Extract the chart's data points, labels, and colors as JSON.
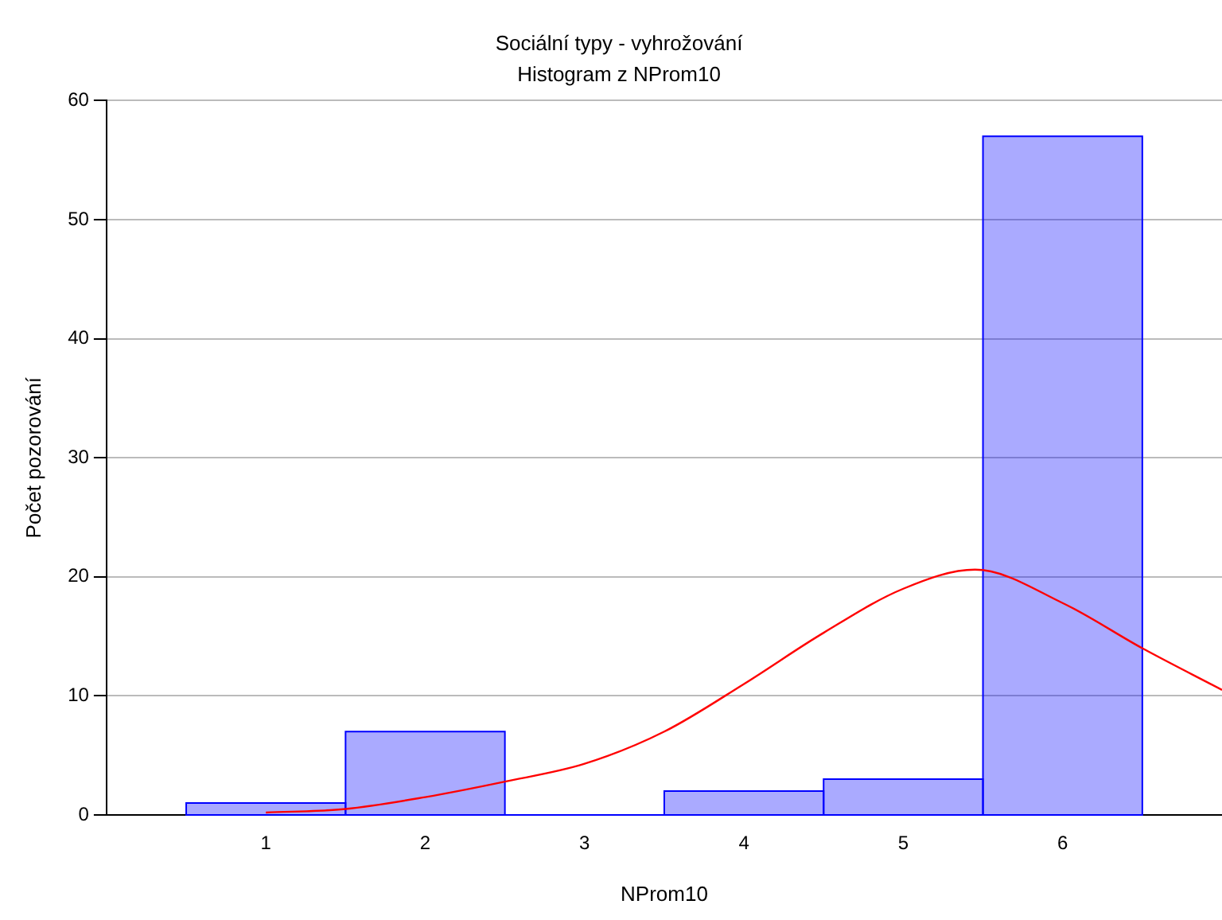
{
  "chart_data": {
    "type": "histogram",
    "title": "Sociální typy - vyhrožování",
    "subtitle": "Histogram z NProm10",
    "xlabel": "NProm10",
    "ylabel": "Počet pozorování",
    "bins": [
      0.5,
      1.5,
      2.5,
      3.5,
      4.5,
      5.5,
      6.5
    ],
    "values": [
      1,
      7,
      0,
      2,
      3,
      57
    ],
    "color": "#0000ff",
    "series": [
      {
        "type": "line",
        "color": "#ff0000",
        "x": [
          1,
          1.5,
          2,
          2.5,
          3,
          3.5,
          4,
          4.5,
          5,
          5.45,
          6,
          6.5,
          7
        ],
        "values": [
          0.2,
          0.5,
          1.5,
          2.8,
          4.3,
          7,
          11,
          15.3,
          19,
          20.6,
          17.8,
          14,
          10.5
        ]
      }
    ],
    "xlim": [
      0,
      7
    ],
    "xticks": [
      1,
      2,
      3,
      4,
      5,
      6
    ],
    "ylim": [
      0,
      60
    ],
    "yticks": [
      0,
      10,
      20,
      30,
      40,
      50,
      60
    ],
    "grid": "y",
    "marker": "none"
  }
}
